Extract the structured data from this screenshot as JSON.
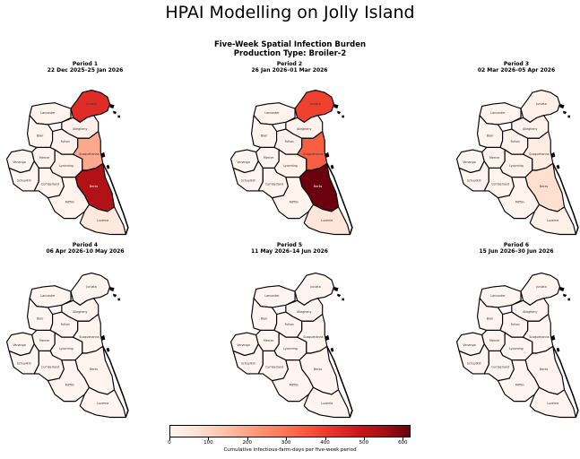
{
  "app_title": "HPAI Modelling on Jolly Island",
  "figure": {
    "title_line1": "Five-Week Spatial Infection Burden",
    "title_line2": "Production Type: Broiler-2"
  },
  "region_labels": [
    "Lancaster",
    "Juniata",
    "Allegheny",
    "Blair",
    "Fulton",
    "Venango",
    "Mercer",
    "Lycoming",
    "Susquehanna",
    "Schuylkill",
    "Cumberland",
    "Berks",
    "Mifflin",
    "Luzerne"
  ],
  "colorbar": {
    "caption": "Cumulative infectious-farm-days per five-week period",
    "ticks": [
      "0",
      "100",
      "200",
      "300",
      "400",
      "500",
      "600"
    ],
    "max": 620,
    "colors": [
      "#fff5f0",
      "#fee0d2",
      "#fcbba1",
      "#fc9272",
      "#fb6a4a",
      "#ef3b2c",
      "#cb181d",
      "#a50f15",
      "#67000d"
    ]
  },
  "periods": [
    {
      "label": "Period 1",
      "dates": "22 Dec 2025–25 Jan 2026",
      "values": {
        "Lancaster": 6,
        "Juniata": 420,
        "Allegheny": 10,
        "Blair": 5,
        "Fulton": 10,
        "Venango": 3,
        "Mercer": 8,
        "Lycoming": 12,
        "Susquehanna": 190,
        "Schuylkill": 3,
        "Cumberland": 8,
        "Berks": 520,
        "Mifflin": 6,
        "Luzerne": 45
      }
    },
    {
      "label": "Period 2",
      "dates": "26 Jan 2026–01 Mar 2026",
      "values": {
        "Lancaster": 6,
        "Juniata": 380,
        "Allegheny": 10,
        "Blair": 5,
        "Fulton": 10,
        "Venango": 3,
        "Mercer": 8,
        "Lycoming": 12,
        "Susquehanna": 330,
        "Schuylkill": 3,
        "Cumberland": 8,
        "Berks": 615,
        "Mifflin": 6,
        "Luzerne": 55
      }
    },
    {
      "label": "Period 3",
      "dates": "02 Mar 2026–05 Apr 2026",
      "values": {
        "Lancaster": 6,
        "Juniata": 15,
        "Allegheny": 10,
        "Blair": 5,
        "Fulton": 10,
        "Venango": 3,
        "Mercer": 8,
        "Lycoming": 12,
        "Susquehanna": 30,
        "Schuylkill": 3,
        "Cumberland": 8,
        "Berks": 80,
        "Mifflin": 6,
        "Luzerne": 20
      }
    },
    {
      "label": "Period 4",
      "dates": "06 Apr 2026–10 May 2026",
      "values": {
        "Lancaster": 4,
        "Juniata": 4,
        "Allegheny": 3,
        "Blair": 3,
        "Fulton": 3,
        "Venango": 2,
        "Mercer": 2,
        "Lycoming": 3,
        "Susquehanna": 4,
        "Schuylkill": 2,
        "Cumberland": 2,
        "Berks": 4,
        "Mifflin": 2,
        "Luzerne": 3
      }
    },
    {
      "label": "Period 5",
      "dates": "11 May 2026–14 Jun 2026",
      "values": {
        "Lancaster": 3,
        "Juniata": 3,
        "Allegheny": 2,
        "Blair": 2,
        "Fulton": 2,
        "Venango": 2,
        "Mercer": 2,
        "Lycoming": 2,
        "Susquehanna": 3,
        "Schuylkill": 2,
        "Cumberland": 2,
        "Berks": 3,
        "Mifflin": 2,
        "Luzerne": 2
      }
    },
    {
      "label": "Period 6",
      "dates": "15 Jun 2026–30 Jun 2026",
      "values": {
        "Lancaster": 2,
        "Juniata": 2,
        "Allegheny": 2,
        "Blair": 2,
        "Fulton": 2,
        "Venango": 1,
        "Mercer": 1,
        "Lycoming": 2,
        "Susquehanna": 2,
        "Schuylkill": 1,
        "Cumberland": 1,
        "Berks": 2,
        "Mifflin": 1,
        "Luzerne": 2
      }
    }
  ]
}
